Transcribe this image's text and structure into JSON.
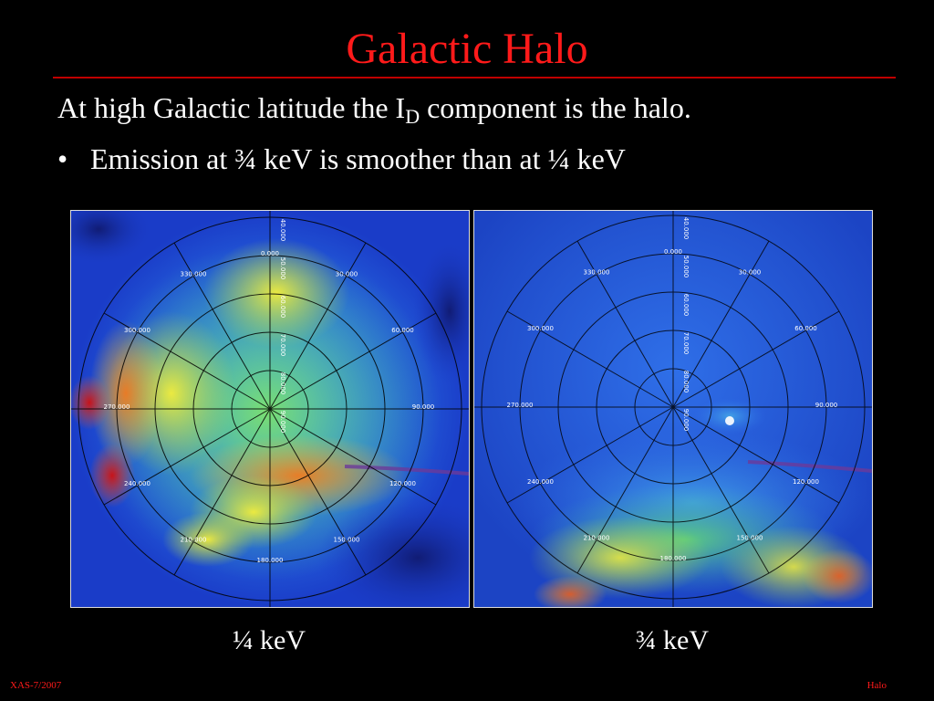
{
  "slide": {
    "title": "Galactic Halo",
    "line1_prefix": "At high Galactic latitude the I",
    "line1_sub": "D",
    "line1_suffix": " component is the halo.",
    "bullet_mark": "•",
    "bullet_text": "Emission at ¾ keV is smoother than at ¼ keV"
  },
  "maps": {
    "left_caption": "¼ keV",
    "right_caption": "¾ keV",
    "ring_labels": [
      "0.000",
      "30.000",
      "60.000",
      "90.000",
      "120.000",
      "150.000",
      "180.000",
      "210.000",
      "240.000",
      "270.000",
      "300.000",
      "330.000"
    ],
    "lat_labels": [
      "40.000",
      "50.000",
      "60.000",
      "70.000",
      "80.000",
      "90.000"
    ]
  },
  "footer": {
    "left": "XAS-7/2007",
    "right": "Halo"
  }
}
